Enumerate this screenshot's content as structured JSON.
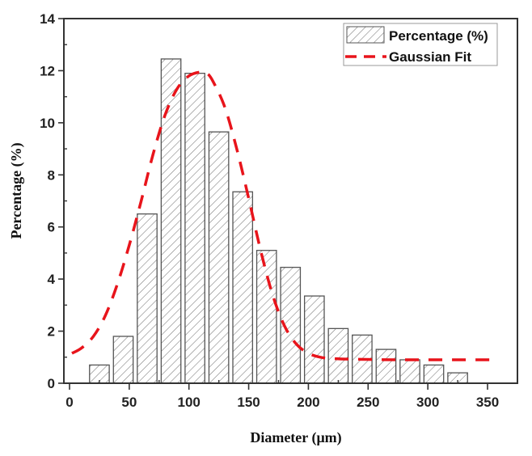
{
  "chart_data": {
    "type": "bar",
    "title": "",
    "xlabel": "Diameter (μm)",
    "ylabel": "Percentage (%)",
    "xlim": [
      -5,
      375
    ],
    "ylim": [
      0,
      14
    ],
    "xticks": [
      0,
      50,
      100,
      150,
      200,
      250,
      300,
      350
    ],
    "yticks": [
      0,
      2,
      4,
      6,
      8,
      10,
      12,
      14
    ],
    "xtick_labels": [
      "0",
      "50",
      "100",
      "150",
      "200",
      "250",
      "300",
      "350"
    ],
    "ytick_labels": [
      "0",
      "2",
      "4",
      "6",
      "8",
      "10",
      "12",
      "14"
    ],
    "grid": false,
    "legend_position": "top-right",
    "bin_width": 16.5,
    "series": [
      {
        "name": "Percentage (%)",
        "kind": "bar",
        "pattern": "hatched",
        "color": "#555555",
        "x": [
          25,
          45,
          65,
          85,
          105,
          125,
          145,
          165,
          185,
          205,
          225,
          245,
          265,
          285,
          305,
          325
        ],
        "values": [
          0.7,
          1.8,
          6.5,
          12.45,
          11.9,
          9.65,
          7.35,
          5.1,
          4.45,
          3.35,
          2.1,
          1.85,
          1.3,
          0.9,
          0.7,
          0.4
        ]
      },
      {
        "name": "Gaussian Fit",
        "kind": "line",
        "style": "dashed",
        "color": "#e8141b",
        "x": [
          2,
          10,
          20,
          30,
          40,
          50,
          60,
          70,
          80,
          90,
          100,
          110,
          115,
          120,
          130,
          140,
          150,
          160,
          170,
          180,
          190,
          200,
          210,
          220,
          240,
          280,
          355
        ],
        "values": [
          1.15,
          1.35,
          1.8,
          2.6,
          3.8,
          5.3,
          7.0,
          8.8,
          10.3,
          11.3,
          11.8,
          11.95,
          11.9,
          11.6,
          10.6,
          9.0,
          7.1,
          5.1,
          3.4,
          2.2,
          1.5,
          1.15,
          1.0,
          0.95,
          0.92,
          0.9,
          0.9
        ]
      }
    ]
  }
}
